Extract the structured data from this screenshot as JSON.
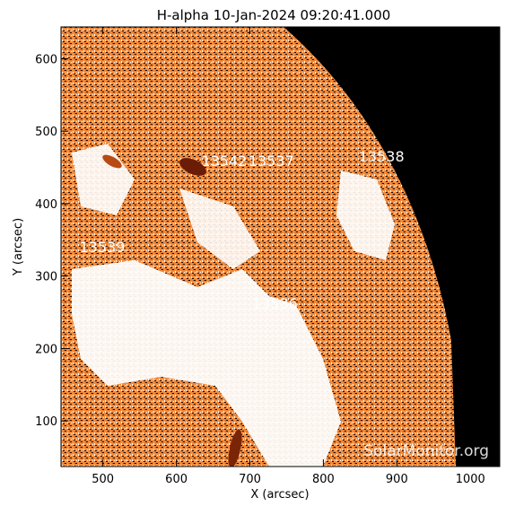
{
  "title": "H-alpha 10-Jan-2024 09:20:41.000",
  "x_axis": {
    "label": "X (arcsec)",
    "range": [
      443,
      1040
    ],
    "ticks": [
      500,
      600,
      700,
      800,
      900,
      1000
    ]
  },
  "y_axis": {
    "label": "Y (arcsec)",
    "range": [
      37,
      644
    ],
    "ticks": [
      100,
      200,
      300,
      400,
      500,
      600
    ]
  },
  "regions": [
    {
      "label": "13542",
      "x": 634,
      "y": 452
    },
    {
      "label": "13537",
      "x": 698,
      "y": 452
    },
    {
      "label": "13538",
      "x": 848,
      "y": 458
    },
    {
      "label": "13539",
      "x": 468,
      "y": 333
    },
    {
      "label": "13536",
      "x": 703,
      "y": 255
    }
  ],
  "watermark": "SolarMonitor.org",
  "colors": {
    "orange": "#f08a3c",
    "dark_orange": "#b84a14",
    "plage": "#6a1c06",
    "sky": "#000000",
    "frame": "#000000"
  }
}
